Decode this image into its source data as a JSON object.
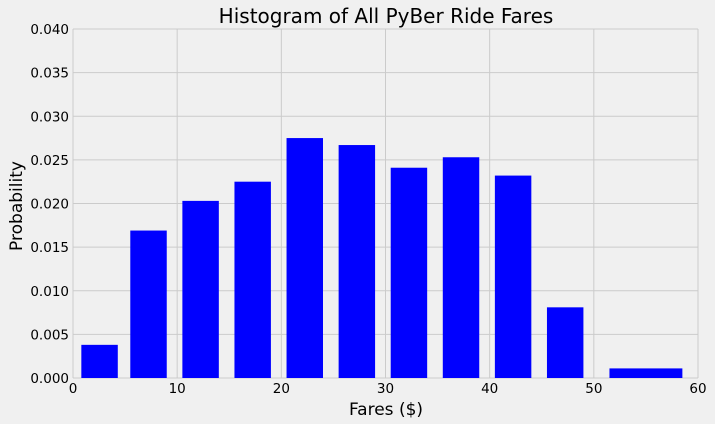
{
  "chart_data": {
    "type": "bar",
    "title": "Histogram of All PyBer Ride Fares",
    "xlabel": "Fares ($)",
    "ylabel": "Probability",
    "xlim": [
      0,
      60
    ],
    "ylim": [
      0,
      0.04
    ],
    "xticks": [
      "0",
      "10",
      "20",
      "30",
      "40",
      "50",
      "60"
    ],
    "yticks": [
      "0.000",
      "0.005",
      "0.010",
      "0.015",
      "0.020",
      "0.025",
      "0.030",
      "0.035",
      "0.040"
    ],
    "grid": true,
    "bar_color": "#0000ff",
    "bins": [
      {
        "x0": 0.8,
        "x1": 4.3,
        "value": 0.0038
      },
      {
        "x0": 5.5,
        "x1": 9.0,
        "value": 0.0169
      },
      {
        "x0": 10.5,
        "x1": 14.0,
        "value": 0.0203
      },
      {
        "x0": 15.5,
        "x1": 19.0,
        "value": 0.0225
      },
      {
        "x0": 20.5,
        "x1": 24.0,
        "value": 0.0275
      },
      {
        "x0": 25.5,
        "x1": 29.0,
        "value": 0.0267
      },
      {
        "x0": 30.5,
        "x1": 34.0,
        "value": 0.0241
      },
      {
        "x0": 35.5,
        "x1": 39.0,
        "value": 0.0253
      },
      {
        "x0": 40.5,
        "x1": 44.0,
        "value": 0.0232
      },
      {
        "x0": 45.5,
        "x1": 49.0,
        "value": 0.0081
      },
      {
        "x0": 51.5,
        "x1": 58.5,
        "value": 0.0011
      }
    ]
  }
}
